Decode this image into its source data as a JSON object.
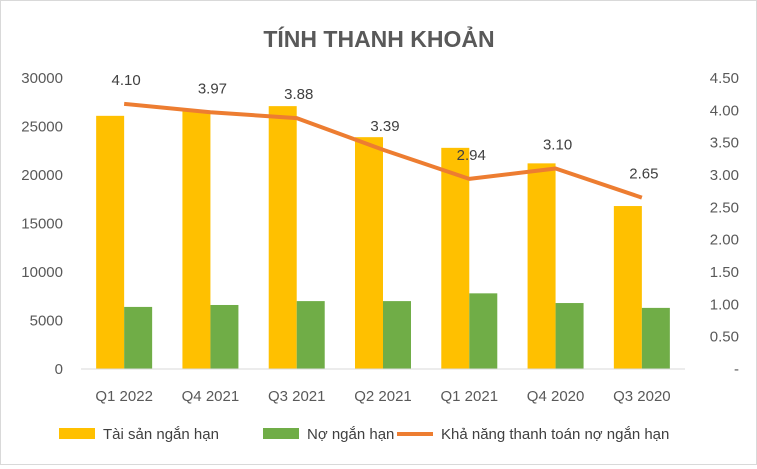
{
  "chart_data": {
    "type": "bar",
    "title": "TÍNH THANH KHOẢN",
    "categories": [
      "Q1 2022",
      "Q4 2021",
      "Q3 2021",
      "Q2 2021",
      "Q1 2021",
      "Q4 2020",
      "Q3 2020"
    ],
    "series": [
      {
        "name": "Tài sản ngắn hạn",
        "type": "bar",
        "axis": "left",
        "color": "#FFC000",
        "values": [
          26100,
          26600,
          27100,
          23900,
          22800,
          21200,
          16800
        ]
      },
      {
        "name": "Nợ ngắn hạn",
        "type": "bar",
        "axis": "left",
        "color": "#70AD47",
        "values": [
          6400,
          6600,
          7000,
          7000,
          7800,
          6800,
          6300
        ]
      },
      {
        "name": "Khả năng thanh toán nợ ngắn hạn",
        "type": "line",
        "axis": "right",
        "color": "#ED7D31",
        "values": [
          4.1,
          3.97,
          3.88,
          3.39,
          2.94,
          3.1,
          2.65
        ],
        "labels": [
          "4.10",
          "3.97",
          "3.88",
          "3.39",
          "2.94",
          "3.10",
          "2.65"
        ]
      }
    ],
    "y_left": {
      "ylim": [
        0,
        30000
      ],
      "ticks": [
        "0",
        "5000",
        "10000",
        "15000",
        "20000",
        "25000",
        "30000"
      ]
    },
    "y_right": {
      "ylim": [
        0,
        4.5
      ],
      "ticks": [
        "-",
        "0.50",
        "1.00",
        "1.50",
        "2.00",
        "2.50",
        "3.00",
        "3.50",
        "4.00",
        "4.50"
      ]
    },
    "grid": false,
    "legend": "bottom"
  }
}
